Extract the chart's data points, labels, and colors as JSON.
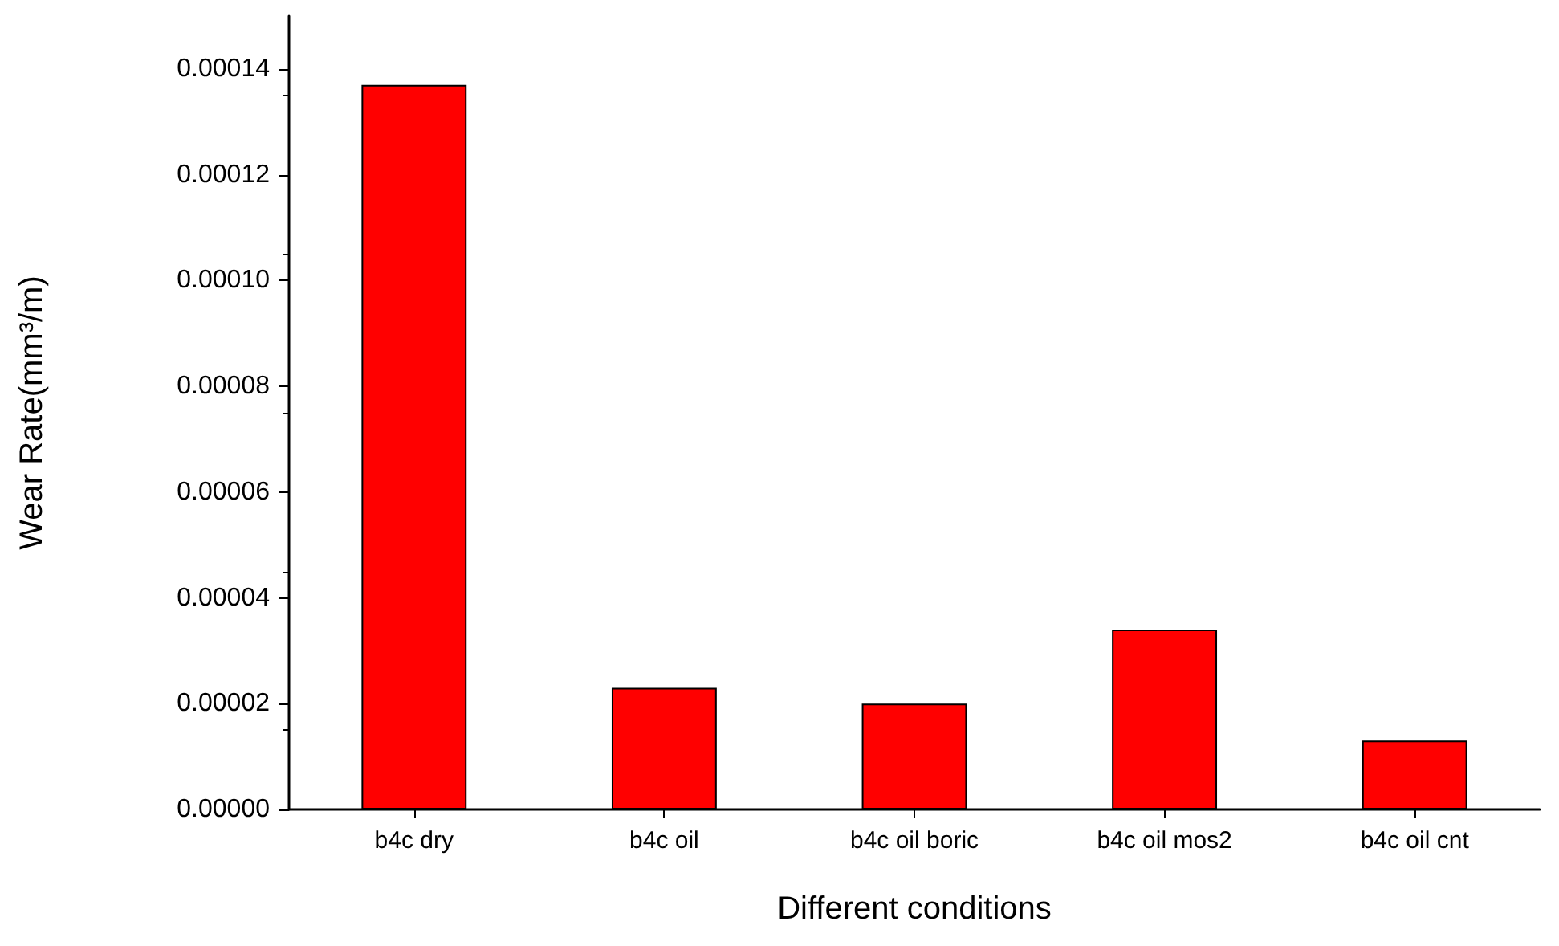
{
  "chart_data": {
    "type": "bar",
    "xlabel": "Different conditions",
    "ylabel": "Wear Rate(mm³/m)",
    "categories": [
      "b4c dry",
      "b4c oil",
      "b4c oil boric",
      "b4c oil mos2",
      "b4c oil cnt"
    ],
    "values": [
      0.000137,
      2.3e-05,
      2e-05,
      3.4e-05,
      1.3e-05
    ],
    "color": "#ff0000",
    "ylim": [
      0,
      0.00015
    ],
    "yticks": [
      {
        "value": 0,
        "label": "0.00000"
      },
      {
        "value": 2e-05,
        "label": "0.00002"
      },
      {
        "value": 4e-05,
        "label": "0.00004"
      },
      {
        "value": 6e-05,
        "label": "0.00006"
      },
      {
        "value": 8e-05,
        "label": "0.00008"
      },
      {
        "value": 0.0001,
        "label": "0.00010"
      },
      {
        "value": 0.00012,
        "label": "0.00012"
      },
      {
        "value": 0.00014,
        "label": "0.00014"
      }
    ],
    "grid": false
  }
}
